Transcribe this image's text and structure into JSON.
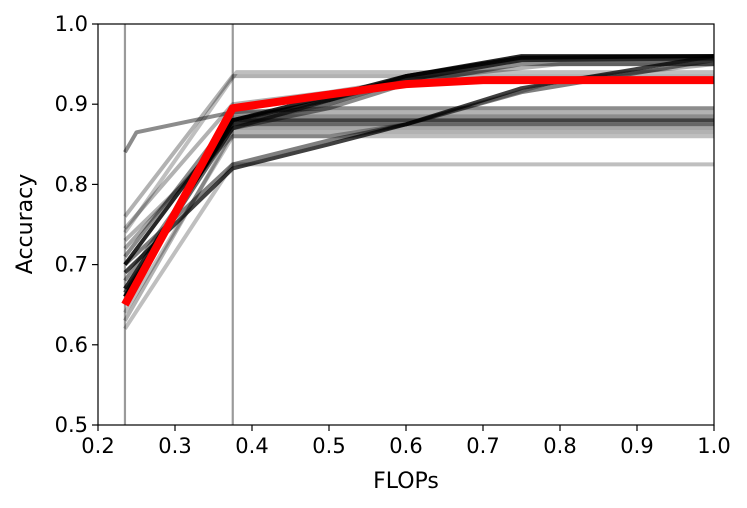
{
  "chart_data": {
    "type": "line",
    "title": "",
    "xlabel": "FLOPs",
    "ylabel": "Accuracy",
    "xlim": [
      0.2,
      1.0
    ],
    "ylim": [
      0.5,
      1.0
    ],
    "xticks": [
      "0.2",
      "0.3",
      "0.4",
      "0.5",
      "0.6",
      "0.7",
      "0.8",
      "0.9",
      "1.0"
    ],
    "yticks": [
      "0.5",
      "0.6",
      "0.7",
      "0.8",
      "0.9",
      "1.0"
    ],
    "grid": false,
    "vlines": [
      0.235,
      0.375
    ],
    "vline_color": "#9a9a9a",
    "highlight_color": "#ff0000",
    "trial_color": "#000000",
    "highlight": {
      "x": [
        0.235,
        0.375,
        0.5,
        0.6,
        0.7,
        1.0
      ],
      "y": [
        0.65,
        0.895,
        0.912,
        0.925,
        0.93,
        0.93
      ]
    },
    "series": [
      {
        "values": [
          [
            0.235,
            0.84
          ],
          [
            0.25,
            0.865
          ],
          [
            0.375,
            0.89
          ],
          [
            0.5,
            0.895
          ],
          [
            1.0,
            0.895
          ]
        ],
        "opacity": 0.45
      },
      {
        "values": [
          [
            0.235,
            0.69
          ],
          [
            0.375,
            0.82
          ],
          [
            0.5,
            0.85
          ],
          [
            0.6,
            0.875
          ],
          [
            0.75,
            0.92
          ],
          [
            1.0,
            0.96
          ]
        ],
        "opacity": 0.75
      },
      {
        "values": [
          [
            0.235,
            0.7
          ],
          [
            0.375,
            0.825
          ],
          [
            0.5,
            0.855
          ],
          [
            0.6,
            0.875
          ],
          [
            0.75,
            0.915
          ],
          [
            1.0,
            0.955
          ]
        ],
        "opacity": 0.5
      },
      {
        "values": [
          [
            0.235,
            0.66
          ],
          [
            0.375,
            0.88
          ],
          [
            0.5,
            0.905
          ],
          [
            0.6,
            0.935
          ],
          [
            0.75,
            0.958
          ],
          [
            1.0,
            0.96
          ]
        ],
        "opacity": 0.85
      },
      {
        "values": [
          [
            0.235,
            0.67
          ],
          [
            0.375,
            0.875
          ],
          [
            0.5,
            0.9
          ],
          [
            0.6,
            0.93
          ],
          [
            0.75,
            0.955
          ],
          [
            1.0,
            0.955
          ]
        ],
        "opacity": 0.6
      },
      {
        "values": [
          [
            0.235,
            0.68
          ],
          [
            0.375,
            0.87
          ],
          [
            0.5,
            0.895
          ],
          [
            0.6,
            0.925
          ],
          [
            0.75,
            0.95
          ],
          [
            1.0,
            0.95
          ]
        ],
        "opacity": 0.45
      },
      {
        "values": [
          [
            0.235,
            0.66
          ],
          [
            0.375,
            0.88
          ],
          [
            1.0,
            0.88
          ]
        ],
        "opacity": 0.75
      },
      {
        "values": [
          [
            0.235,
            0.67
          ],
          [
            0.375,
            0.875
          ],
          [
            1.0,
            0.875
          ]
        ],
        "opacity": 0.6
      },
      {
        "values": [
          [
            0.235,
            0.71
          ],
          [
            0.375,
            0.885
          ],
          [
            1.0,
            0.885
          ]
        ],
        "opacity": 0.45
      },
      {
        "values": [
          [
            0.235,
            0.72
          ],
          [
            0.375,
            0.87
          ],
          [
            1.0,
            0.87
          ]
        ],
        "opacity": 0.35
      },
      {
        "values": [
          [
            0.235,
            0.64
          ],
          [
            0.375,
            0.86
          ],
          [
            1.0,
            0.86
          ]
        ],
        "opacity": 0.25
      },
      {
        "values": [
          [
            0.235,
            0.62
          ],
          [
            0.375,
            0.825
          ],
          [
            1.0,
            0.825
          ]
        ],
        "opacity": 0.25
      },
      {
        "values": [
          [
            0.235,
            0.76
          ],
          [
            0.375,
            0.935
          ],
          [
            1.0,
            0.935
          ]
        ],
        "opacity": 0.3
      },
      {
        "values": [
          [
            0.235,
            0.74
          ],
          [
            0.38,
            0.94
          ],
          [
            1.0,
            0.94
          ]
        ],
        "opacity": 0.25
      },
      {
        "values": [
          [
            0.235,
            0.745
          ],
          [
            0.375,
            0.9
          ],
          [
            0.5,
            0.915
          ],
          [
            0.6,
            0.93
          ],
          [
            0.8,
            0.95
          ],
          [
            1.0,
            0.95
          ]
        ],
        "opacity": 0.3
      },
      {
        "values": [
          [
            0.235,
            0.65
          ],
          [
            0.375,
            0.89
          ],
          [
            1.0,
            0.89
          ]
        ],
        "opacity": 0.3
      },
      {
        "values": [
          [
            0.235,
            0.63
          ],
          [
            0.375,
            0.865
          ],
          [
            1.0,
            0.865
          ]
        ],
        "opacity": 0.3
      },
      {
        "values": [
          [
            0.235,
            0.73
          ],
          [
            0.375,
            0.86
          ],
          [
            0.5,
            0.86
          ],
          [
            0.6,
            0.875
          ],
          [
            0.8,
            0.93
          ],
          [
            1.0,
            0.95
          ]
        ],
        "opacity": 0.3
      },
      {
        "values": [
          [
            0.235,
            0.7
          ],
          [
            0.375,
            0.88
          ],
          [
            0.5,
            0.91
          ],
          [
            0.6,
            0.935
          ],
          [
            0.75,
            0.96
          ],
          [
            1.0,
            0.96
          ]
        ],
        "opacity": 0.85
      },
      {
        "values": [
          [
            0.235,
            0.665
          ],
          [
            0.375,
            0.87
          ],
          [
            0.5,
            0.905
          ],
          [
            0.6,
            0.93
          ],
          [
            0.75,
            0.955
          ],
          [
            1.0,
            0.957
          ]
        ],
        "opacity": 0.6
      }
    ]
  }
}
